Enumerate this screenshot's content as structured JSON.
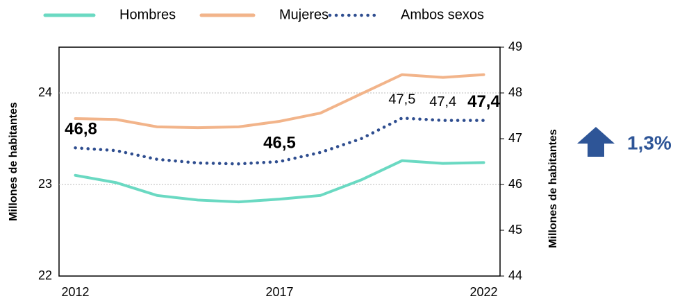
{
  "chart_data": {
    "type": "line",
    "x": [
      2012,
      2013,
      2014,
      2015,
      2016,
      2017,
      2018,
      2019,
      2020,
      2021,
      2022
    ],
    "xlim": [
      2011.6,
      2022.4
    ],
    "xticks": [
      2012,
      2017,
      2022
    ],
    "ylim": [
      22,
      24.5
    ],
    "yticks": [
      22,
      23,
      24
    ],
    "y2lim": [
      44,
      49
    ],
    "y2ticks": [
      44,
      45,
      46,
      47,
      48,
      49
    ],
    "ylabel": "Millones de habitantes",
    "y2label": "Millones de habitantes",
    "grid": true,
    "legend": "top",
    "series": [
      {
        "name": "Hombres",
        "color": "#6ad9c2",
        "line_style": "solid",
        "values": [
          23.1,
          23.02,
          22.88,
          22.83,
          22.81,
          22.84,
          22.88,
          23.05,
          23.26,
          23.23,
          23.24
        ]
      },
      {
        "name": "Mujeres",
        "color": "#f2b48a",
        "line_style": "solid",
        "values": [
          23.72,
          23.71,
          23.63,
          23.62,
          23.63,
          23.69,
          23.78,
          23.99,
          24.2,
          24.17,
          24.2
        ]
      },
      {
        "name": "Ambos sexos",
        "color": "#2e4d8f",
        "line_style": "dotted",
        "axis": "y2",
        "values": [
          46.8,
          46.74,
          46.55,
          46.47,
          46.45,
          46.5,
          46.7,
          47.0,
          47.45,
          47.4,
          47.4
        ],
        "value_labels": [
          "46,8",
          null,
          null,
          null,
          null,
          "46,5",
          null,
          null,
          "47,5",
          "47,4",
          "47,4"
        ],
        "bold_labels": [
          true,
          false,
          false,
          false,
          false,
          true,
          false,
          false,
          false,
          false,
          true
        ]
      }
    ],
    "annotation": "1,3%",
    "annotation_color": "#2e5597"
  }
}
